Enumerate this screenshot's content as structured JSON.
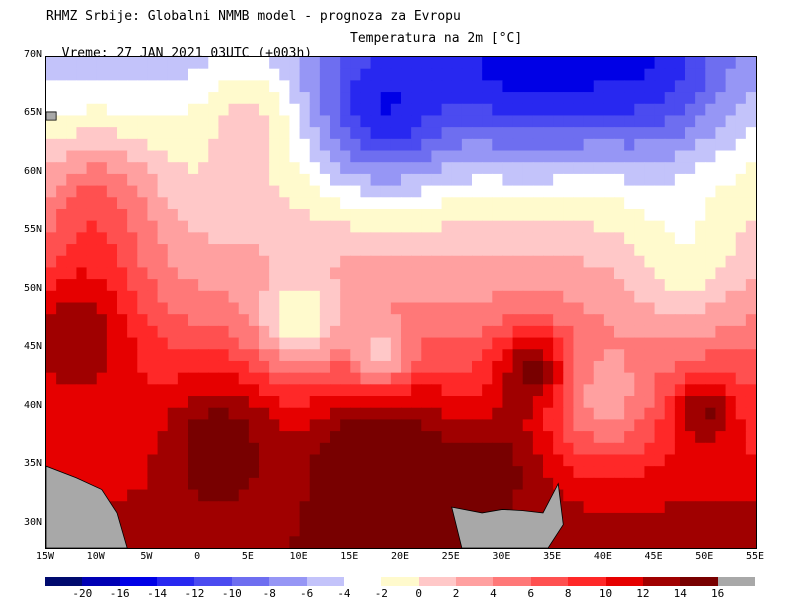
{
  "header": {
    "line1": "RHMZ Srbije: Globalni NMMB model - prognoza za Evropu",
    "line2_left": "Vreme: 27 JAN 2021 03UTC (+003h)",
    "line2_right": "Temperatura na 2m [°C]"
  },
  "map": {
    "lat_ticks": [
      "70N",
      "65N",
      "60N",
      "55N",
      "50N",
      "45N",
      "40N",
      "35N",
      "30N"
    ],
    "lon_ticks": [
      "15W",
      "10W",
      "5W",
      "0",
      "5E",
      "10E",
      "15E",
      "20E",
      "25E",
      "30E",
      "35E",
      "40E",
      "45E",
      "50E",
      "55E"
    ],
    "extent": {
      "lon_min": -15,
      "lon_max": 55,
      "lat_min": 28,
      "lat_max": 70
    },
    "land_mask_color": "#a8a8a8"
  },
  "colorbar": {
    "labels": [
      "-20",
      "-16",
      "-14",
      "-12",
      "-10",
      "-8",
      "-6",
      "-4",
      "-2",
      "0",
      "2",
      "4",
      "6",
      "8",
      "10",
      "12",
      "14",
      "16"
    ],
    "colors": [
      "#000a6e",
      "#0000b4",
      "#0000e6",
      "#2828f0",
      "#4b4bf0",
      "#6e6ef0",
      "#9696f5",
      "#c3c3fa",
      "#ffffff",
      "#fffacd",
      "#ffc8c8",
      "#ffa0a0",
      "#ff7878",
      "#ff5050",
      "#ff2828",
      "#e60000",
      "#a00000",
      "#780000",
      "#a8a8a8"
    ]
  }
}
